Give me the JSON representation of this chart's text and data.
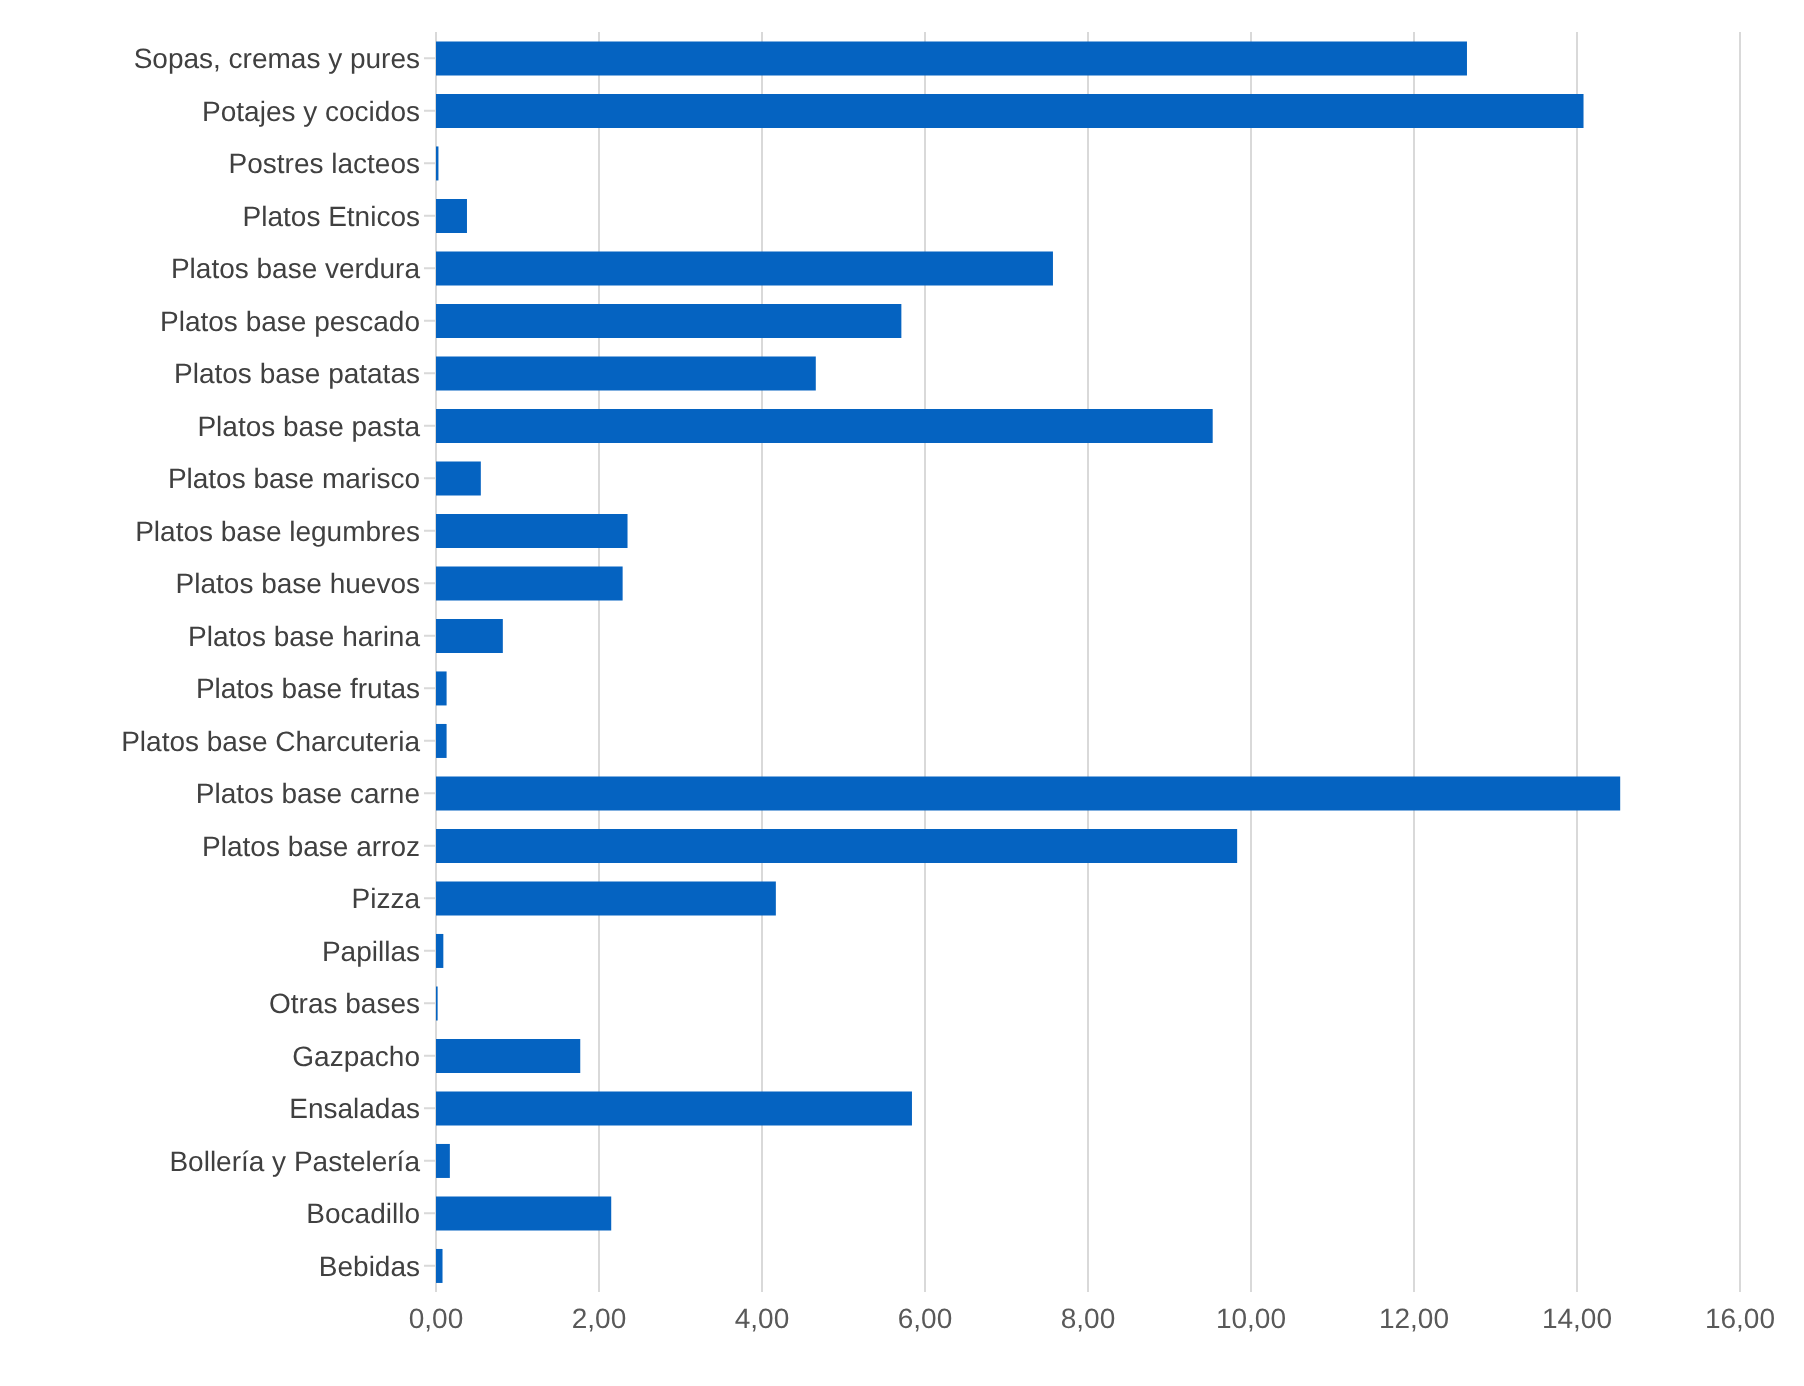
{
  "chart_data": {
    "type": "bar",
    "orientation": "horizontal",
    "categories": [
      "Sopas, cremas y pures",
      "Potajes y cocidos",
      "Postres lacteos",
      "Platos Etnicos",
      "Platos base verdura",
      "Platos base pescado",
      "Platos base patatas",
      "Platos base pasta",
      "Platos base marisco",
      "Platos base legumbres",
      "Platos base huevos",
      "Platos base harina",
      "Platos base frutas",
      "Platos base Charcuteria",
      "Platos base carne",
      "Platos base arroz",
      "Pizza",
      "Papillas",
      "Otras bases",
      "Gazpacho",
      "Ensaladas",
      "Bollería y Pastelería",
      "Bocadillo",
      "Bebidas"
    ],
    "values": [
      12.65,
      14.08,
      0.03,
      0.38,
      7.57,
      5.71,
      4.66,
      9.53,
      0.55,
      2.35,
      2.29,
      0.82,
      0.13,
      0.13,
      14.53,
      9.83,
      4.17,
      0.09,
      0.02,
      1.77,
      5.84,
      0.17,
      2.15,
      0.08
    ],
    "color": "#0563c1",
    "xlim": [
      0,
      16
    ],
    "xticks": [
      {
        "value": 0,
        "label": "0,00"
      },
      {
        "value": 2,
        "label": "2,00"
      },
      {
        "value": 4,
        "label": "4,00"
      },
      {
        "value": 6,
        "label": "6,00"
      },
      {
        "value": 8,
        "label": "8,00"
      },
      {
        "value": 10,
        "label": "10,00"
      },
      {
        "value": 12,
        "label": "12,00"
      },
      {
        "value": 14,
        "label": "14,00"
      },
      {
        "value": 16,
        "label": "16,00"
      }
    ],
    "grid": "x"
  }
}
